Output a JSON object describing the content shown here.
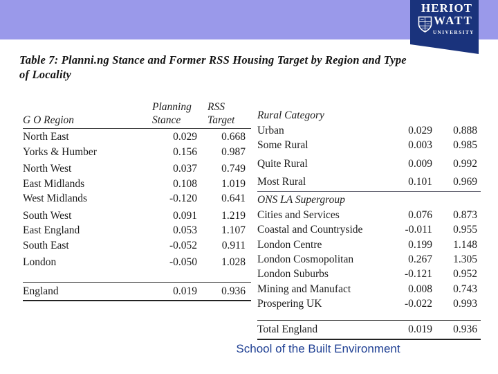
{
  "colors": {
    "banner": "#9a99ea",
    "logo_navy": "#1a337c",
    "footer_text": "#1e3f93",
    "rule_dark": "#333333",
    "rule_light": "#6d6d7a"
  },
  "logo": {
    "word1": "HERIOT",
    "word2": "WATT",
    "word3": "UNIVERSITY",
    "shield_icon": "heriot-watt-shield"
  },
  "title": {
    "line1": "Table 7: Planni.ng Stance and Former RSS Housing Target by Region and Type",
    "line2": "of Locality"
  },
  "left_table": {
    "headers": {
      "region": "G O Region",
      "col1_top": "Planning",
      "col1_bottom": "Stance",
      "col2_top": "RSS",
      "col2_bottom": "Target"
    },
    "groups": [
      {
        "rows": [
          [
            "North East",
            "0.029",
            "0.668"
          ],
          [
            "Yorks & Humber",
            "0.156",
            "0.987"
          ]
        ]
      },
      {
        "rows": [
          [
            "North West",
            "0.037",
            "0.749"
          ],
          [
            "East Midlands",
            "0.108",
            "1.019"
          ],
          [
            "West Midlands",
            "-0.120",
            "0.641"
          ]
        ]
      },
      {
        "rows": [
          [
            "South West",
            "0.091",
            "1.219"
          ],
          [
            "East England",
            "0.053",
            "1.107"
          ],
          [
            "South East",
            "-0.052",
            "0.911"
          ]
        ]
      },
      {
        "rows": [
          [
            "London",
            "-0.050",
            "1.028"
          ]
        ]
      }
    ],
    "total_row": [
      "England",
      "0.019",
      "0.936"
    ]
  },
  "right_table": {
    "section1": {
      "heading": "Rural Category",
      "rows_a": [
        [
          "Urban",
          "0.029",
          "0.888"
        ],
        [
          "Some Rural",
          "0.003",
          "0.985"
        ]
      ],
      "rows_b": [
        [
          "Quite Rural",
          "0.009",
          "0.992"
        ]
      ],
      "rows_c": [
        [
          "Most Rural",
          "0.101",
          "0.969"
        ]
      ]
    },
    "section2": {
      "heading": "ONS LA Supergroup",
      "rows": [
        [
          "Cities and Services",
          "0.076",
          "0.873"
        ],
        [
          "Coastal and Countryside",
          "-0.011",
          "0.955"
        ],
        [
          "London Centre",
          "0.199",
          "1.148"
        ],
        [
          "London Cosmopolitan",
          "0.267",
          "1.305"
        ],
        [
          "London Suburbs",
          "-0.121",
          "0.952"
        ],
        [
          "Mining and Manufact",
          "0.008",
          "0.743"
        ],
        [
          "Prospering UK",
          "-0.022",
          "0.993"
        ]
      ]
    },
    "total_row": [
      "Total England",
      "0.019",
      "0.936"
    ]
  },
  "footer": {
    "text": "School of the Built Environment"
  }
}
